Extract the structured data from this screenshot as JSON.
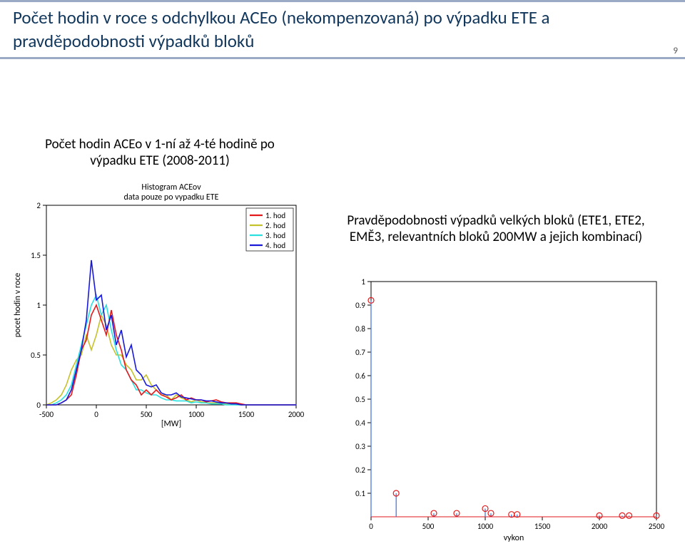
{
  "title": "Počet hodin v roce s odchylkou ACEo (nekompenzovaná) po výpadku ETE a pravděpodobnosti výpadků bloků",
  "subhead_left": "Počet hodin ACEo v 1-ní až 4-té hodině po výpadku ETE (2008-2011)",
  "subhead_right": "Pravděpodobnosti výpadků velkých bloků (ETE1, ETE2, EMĚ3, relevantních bloků 200MW a jejich kombinací)",
  "page_number": "9",
  "histogram": {
    "title_line1": "Histogram ACEov",
    "title_line2": "data pouze po vypadku ETE",
    "title_fontsize": 12,
    "xlabel": "[MW]",
    "ylabel": "pocet hodin v roce",
    "label_fontsize": 12,
    "tick_fontsize": 11,
    "xlim": [
      -500,
      2000
    ],
    "ylim": [
      0,
      2
    ],
    "xticks": [
      -500,
      0,
      500,
      1000,
      1500,
      2000
    ],
    "yticks": [
      0,
      0.5,
      1,
      1.5,
      2
    ],
    "background_color": "#ffffff",
    "axis_color": "#000000",
    "legend": {
      "items": [
        "1. hod",
        "2. hod",
        "3. hod",
        "4. hod"
      ],
      "colors": [
        "#e31a1c",
        "#c6c22d",
        "#2ce0e0",
        "#1919d8"
      ],
      "position": "upper-right"
    },
    "series": {
      "x": [
        -500,
        -450,
        -400,
        -350,
        -300,
        -250,
        -200,
        -150,
        -100,
        -50,
        0,
        50,
        100,
        150,
        200,
        250,
        300,
        350,
        400,
        450,
        500,
        550,
        600,
        650,
        700,
        750,
        800,
        850,
        900,
        950,
        1000,
        1050,
        1100,
        1150,
        1200,
        1250,
        1300,
        1350,
        1400,
        1450,
        1500,
        1600,
        1700,
        1800,
        1900,
        2000
      ],
      "y1": [
        0,
        0,
        0,
        0.02,
        0.05,
        0.1,
        0.3,
        0.55,
        0.65,
        0.9,
        1.0,
        0.85,
        0.7,
        0.95,
        0.7,
        0.55,
        0.35,
        0.25,
        0.2,
        0.1,
        0.15,
        0.1,
        0.15,
        0.1,
        0.08,
        0.05,
        0.07,
        0.1,
        0.05,
        0.07,
        0.05,
        0.05,
        0.03,
        0.04,
        0.05,
        0.03,
        0.02,
        0.02,
        0.02,
        0.01,
        0,
        0,
        0,
        0,
        0,
        0
      ],
      "y2": [
        0,
        0.02,
        0.05,
        0.1,
        0.2,
        0.35,
        0.45,
        0.5,
        0.7,
        0.55,
        0.7,
        0.9,
        0.8,
        0.6,
        0.5,
        0.5,
        0.4,
        0.35,
        0.25,
        0.25,
        0.3,
        0.2,
        0.15,
        0.1,
        0.1,
        0.05,
        0.1,
        0.07,
        0.05,
        0.03,
        0.05,
        0.03,
        0.02,
        0.02,
        0.02,
        0.01,
        0.01,
        0.01,
        0,
        0,
        0,
        0,
        0,
        0,
        0,
        0
      ],
      "y3": [
        0,
        0,
        0.02,
        0.05,
        0.1,
        0.2,
        0.4,
        0.6,
        0.8,
        1.0,
        1.1,
        0.9,
        1.0,
        0.75,
        0.55,
        0.4,
        0.35,
        0.25,
        0.15,
        0.15,
        0.12,
        0.1,
        0.1,
        0.07,
        0.05,
        0.05,
        0.04,
        0.04,
        0.04,
        0.02,
        0.03,
        0.02,
        0.02,
        0.01,
        0.01,
        0.01,
        0,
        0,
        0,
        0,
        0,
        0,
        0,
        0,
        0,
        0
      ],
      "y4": [
        0,
        0,
        0,
        0.02,
        0.05,
        0.15,
        0.35,
        0.55,
        0.85,
        1.45,
        1.05,
        1.1,
        0.75,
        0.9,
        0.6,
        0.75,
        0.48,
        0.6,
        0.35,
        0.3,
        0.2,
        0.18,
        0.2,
        0.12,
        0.1,
        0.1,
        0.12,
        0.08,
        0.07,
        0.06,
        0.05,
        0.05,
        0.04,
        0.04,
        0.03,
        0.02,
        0.02,
        0.01,
        0.01,
        0,
        0,
        0,
        0,
        0,
        0,
        0
      ]
    },
    "colors": {
      "1": "#e31a1c",
      "2": "#c6c22d",
      "3": "#2ce0e0",
      "4": "#1919d8"
    },
    "line_width": 1.6
  },
  "stemplot": {
    "xlabel": "vykon",
    "label_fontsize": 12,
    "tick_fontsize": 11,
    "xlim": [
      0,
      2500
    ],
    "ylim": [
      0,
      1
    ],
    "xticks": [
      0,
      500,
      1000,
      1500,
      2000,
      2500
    ],
    "yticks": [
      0.1,
      0.2,
      0.3,
      0.4,
      0.5,
      0.6,
      0.7,
      0.8,
      0.9,
      1
    ],
    "background_color": "#ffffff",
    "axis_color": "#000000",
    "stem_line_color": "#3a6fd8",
    "marker_stroke": "#e31a1c",
    "marker_fill": "none",
    "marker_radius": 4,
    "baseline_color": "#e31a1c",
    "data": [
      {
        "x": 0,
        "y": 0.92
      },
      {
        "x": 220,
        "y": 0.1
      },
      {
        "x": 550,
        "y": 0.015
      },
      {
        "x": 750,
        "y": 0.015
      },
      {
        "x": 1000,
        "y": 0.035
      },
      {
        "x": 1050,
        "y": 0.015
      },
      {
        "x": 1230,
        "y": 0.01
      },
      {
        "x": 1280,
        "y": 0.01
      },
      {
        "x": 2000,
        "y": 0.005
      },
      {
        "x": 2200,
        "y": 0.005
      },
      {
        "x": 2260,
        "y": 0.005
      },
      {
        "x": 2500,
        "y": 0.005
      }
    ]
  }
}
